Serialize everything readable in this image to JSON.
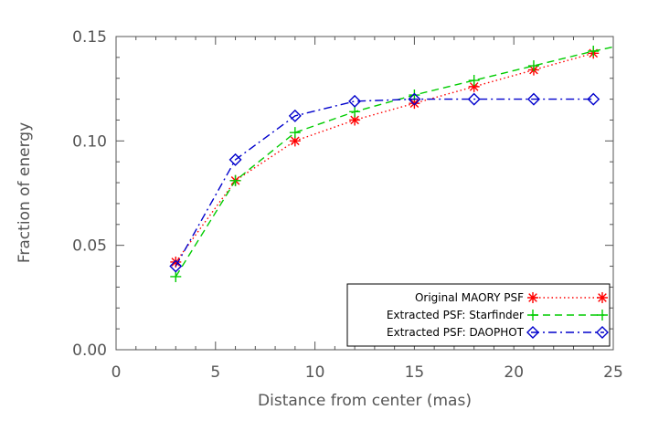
{
  "chart_data": {
    "type": "line",
    "title": "",
    "xlabel": "Distance from center (mas)",
    "ylabel": "Fraction of energy",
    "xlim": [
      0,
      25
    ],
    "ylim": [
      0,
      0.15
    ],
    "xticks": [
      0,
      5,
      10,
      15,
      20,
      25
    ],
    "yticks": [
      0.0,
      0.05,
      0.1,
      0.15
    ],
    "xtick_labels": [
      "0",
      "5",
      "10",
      "15",
      "20",
      "25"
    ],
    "ytick_labels": [
      "0.00",
      "0.05",
      "0.10",
      "0.15"
    ],
    "grid": false,
    "legend_position": "bottom-right",
    "series": [
      {
        "name": "Original MAORY PSF",
        "color": "#ff0000",
        "line_style": "dotted",
        "marker": "asterisk",
        "x": [
          3,
          6,
          9,
          12,
          15,
          18,
          21,
          24
        ],
        "y": [
          0.042,
          0.081,
          0.1,
          0.11,
          0.118,
          0.126,
          0.134,
          0.142
        ]
      },
      {
        "name": "Extracted PSF: Starfinder",
        "color": "#00cc00",
        "line_style": "dashed",
        "marker": "plus",
        "x": [
          3,
          6,
          9,
          12,
          15,
          18,
          21,
          24
        ],
        "y": [
          0.035,
          0.081,
          0.104,
          0.114,
          0.122,
          0.129,
          0.136,
          0.143
        ]
      },
      {
        "name": "Extracted PSF: DAOPHOT",
        "color": "#0000cc",
        "line_style": "dashdot",
        "marker": "diamond",
        "x": [
          3,
          6,
          9,
          12,
          15,
          18,
          21,
          24
        ],
        "y": [
          0.04,
          0.091,
          0.112,
          0.119,
          0.12,
          0.12,
          0.12,
          0.12
        ]
      }
    ],
    "extensions": [
      {
        "x": [
          24,
          25
        ],
        "y": [
          0.143,
          0.145
        ],
        "series": 1
      }
    ]
  }
}
